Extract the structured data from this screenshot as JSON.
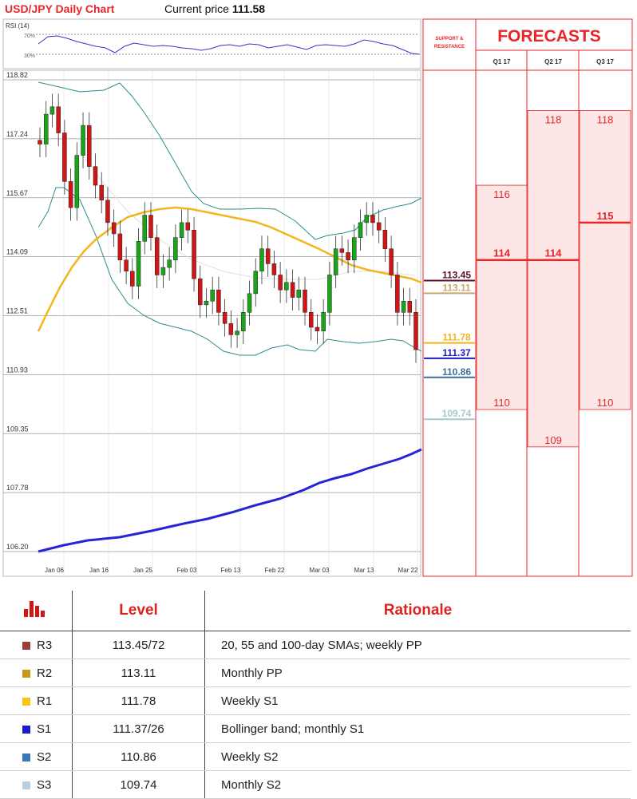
{
  "header": {
    "title": "USD/JPY Daily Chart",
    "price_label": "Current price",
    "price_value": "111.58"
  },
  "rsi": {
    "label": "RSI (14)",
    "upper": "70%",
    "lower": "30%"
  },
  "colors": {
    "candle_up": "#1aa41a",
    "candle_down": "#d11515",
    "sma_orange": "#f2b51c",
    "sma_blue": "#2525d6",
    "bollinger": "#2b8e8e",
    "forecast_red": "#e8262b",
    "forecast_fill": "#fde6e6"
  },
  "chart_data": {
    "type": "candlestick",
    "title": "USD/JPY Daily Chart",
    "y_ticks": [
      "118.82",
      "117.24",
      "115.67",
      "114.09",
      "112.51",
      "110.93",
      "109.35",
      "107.78",
      "106.20"
    ],
    "ylim": [
      106.2,
      118.82
    ],
    "x_ticks": [
      "Jan 06",
      "Jan 16",
      "Jan 25",
      "Feb 03",
      "Feb 13",
      "Feb 22",
      "Mar 03",
      "Mar 13",
      "Mar 22"
    ],
    "candles_close": [
      117.1,
      117.9,
      118.1,
      117.4,
      116.1,
      115.4,
      116.8,
      117.6,
      116.5,
      116.0,
      115.6,
      115.0,
      114.7,
      114.0,
      113.7,
      113.3,
      114.5,
      115.2,
      114.6,
      113.6,
      113.8,
      114.0,
      114.6,
      115.0,
      114.8,
      113.5,
      112.8,
      112.9,
      113.2,
      112.6,
      112.3,
      112.0,
      112.1,
      112.6,
      113.1,
      113.7,
      114.3,
      113.9,
      113.6,
      113.2,
      113.4,
      113.0,
      113.2,
      112.6,
      112.2,
      112.1,
      112.6,
      113.6,
      114.3,
      114.2,
      114.0,
      114.6,
      115.0,
      115.2,
      115.0,
      114.8,
      114.3,
      113.6,
      112.6,
      112.9,
      112.6,
      111.6
    ]
  },
  "labels": {
    "right_levels": [
      {
        "value": "113.45",
        "color": "#5a0f23"
      },
      {
        "value": "113.11",
        "color": "#c9a76e"
      },
      {
        "value": "111.78",
        "color": "#f2b51c"
      },
      {
        "value": "111.37",
        "color": "#1c1cbf"
      },
      {
        "value": "110.86",
        "color": "#3a6f9a"
      },
      {
        "value": "109.74",
        "color": "#a8c8cf"
      }
    ],
    "sr_title_1": "SUPPORT &",
    "sr_title_2": "RESISTANCE"
  },
  "forecasts": {
    "title": "FORECASTS",
    "columns": [
      {
        "label": "Q1 17",
        "high": "116",
        "mid": "114",
        "low": "110"
      },
      {
        "label": "Q2 17",
        "high": "118",
        "mid": "114",
        "low": "109"
      },
      {
        "label": "Q3 17",
        "high": "118",
        "mid": "115",
        "low": "110"
      }
    ]
  },
  "table": {
    "headers": [
      "Level",
      "Rationale"
    ],
    "rows": [
      {
        "name": "R3",
        "color": "#9b3b3b",
        "level": "113.45/72",
        "rationale": "20, 55 and 100-day SMAs; weekly PP"
      },
      {
        "name": "R2",
        "color": "#c9951a",
        "level": "113.11",
        "rationale": "Monthly PP"
      },
      {
        "name": "R1",
        "color": "#f5c518",
        "level": "111.78",
        "rationale": "Weekly S1"
      },
      {
        "name": "S1",
        "color": "#1a1ad1",
        "level": "111.37/26",
        "rationale": "Bollinger band; monthly S1"
      },
      {
        "name": "S2",
        "color": "#3d77b5",
        "level": "110.86",
        "rationale": "Weekly S2"
      },
      {
        "name": "S3",
        "color": "#b9cfe2",
        "level": "109.74",
        "rationale": "Monthly S2"
      }
    ]
  }
}
